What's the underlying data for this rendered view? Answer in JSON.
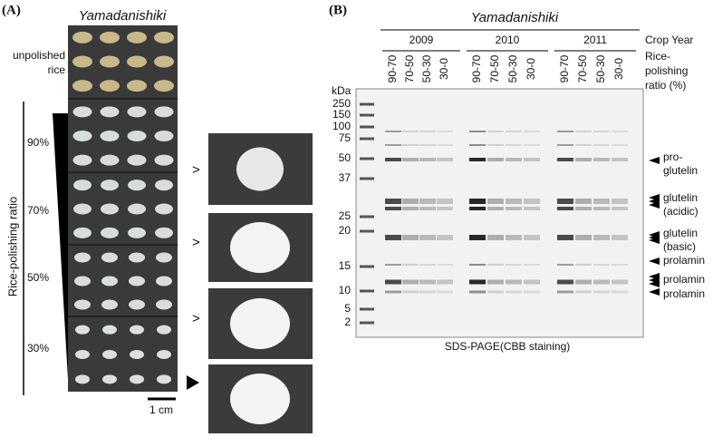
{
  "panel_a": {
    "label": "(A)",
    "title": "Yamadanishiki",
    "unpolished_label": [
      "unpolished",
      "rice"
    ],
    "axis_label": "Rice-polishing ratio",
    "ratios": [
      "90%",
      "70%",
      "50%",
      "30%"
    ],
    "comparison_marks": [
      ">",
      ">",
      ">"
    ],
    "scale_bar": "1 cm"
  },
  "panel_b": {
    "label": "(B)",
    "title": "Yamadanishiki",
    "years": [
      "2009",
      "2010",
      "2011"
    ],
    "crop_year_label": "Crop Year",
    "lanes": [
      "90-70",
      "70-50",
      "50-30",
      "30-0"
    ],
    "lane_axis_label": [
      "Rice-",
      "polishing",
      "ratio (%)"
    ],
    "marker_unit": "kDa",
    "markers": [
      250,
      150,
      100,
      75,
      50,
      37,
      25,
      20,
      15,
      10,
      5,
      2
    ],
    "bands": [
      {
        "lines": [
          "pro-",
          "glutelin"
        ]
      },
      {
        "lines": [
          "glutelin",
          "(acidic)"
        ]
      },
      {
        "lines": [
          "glutelin",
          "(basic)"
        ]
      },
      {
        "lines": [
          "prolamin"
        ]
      },
      {
        "lines": [
          "prolamin"
        ]
      },
      {
        "lines": [
          "prolamin"
        ]
      }
    ],
    "caption": "SDS-PAGE(CBB staining)"
  }
}
